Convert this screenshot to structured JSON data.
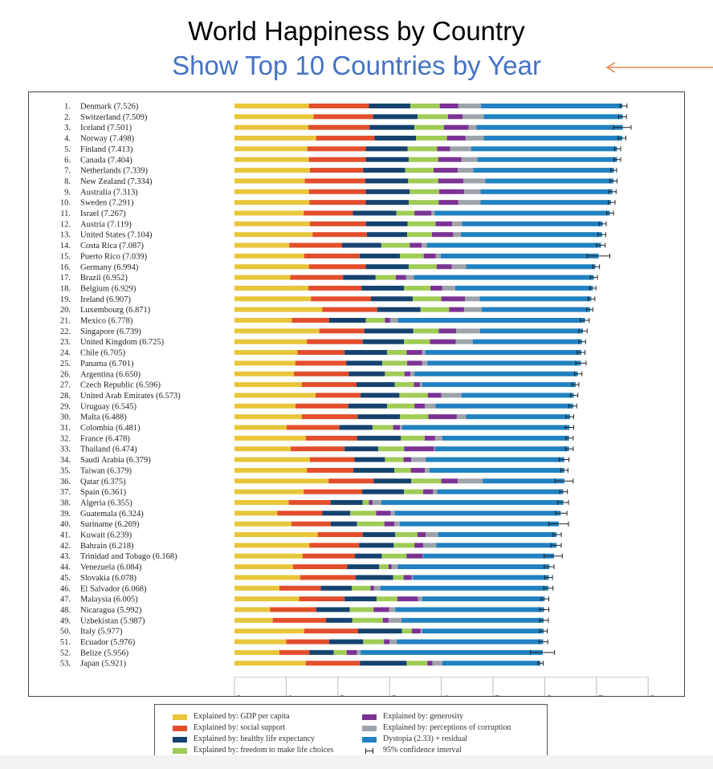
{
  "title": "World Happiness by Country",
  "subtitle": "Show Top 10 Countries by Year",
  "colors": {
    "gdp": "#e8c53a",
    "social": "#e24e2c",
    "health": "#16426f",
    "freedom": "#9fcc55",
    "generosity": "#7b3294",
    "corruption": "#9ea3ab",
    "dystopia": "#2181c1",
    "arrow": "#e8875a",
    "subtitle": "#4472c4"
  },
  "legend": {
    "gdp": "Explained by: GDP per capita",
    "social": "Explained by: social support",
    "health": "Explained by: healthy life expectancy",
    "freedom": "Explained by: freedom to make life choices",
    "generosity": "Explained by: generosity",
    "corruption": "Explained by: perceptions of corruption",
    "dystopia": "Dystopia (2.33) + residual",
    "ci": "95% confidence interval"
  },
  "chart_data": {
    "type": "bar",
    "orientation": "horizontal",
    "stacked": true,
    "title": "World Happiness by Country",
    "subtitle": "Show Top 10 Countries by Year",
    "xlim": [
      0,
      8
    ],
    "xticks": [
      "0",
      "1",
      "2",
      "3",
      "4",
      "5",
      "6",
      "7",
      "8"
    ],
    "grid": false,
    "legend_position": "bottom",
    "series_names": [
      "Explained by: GDP per capita",
      "Explained by: social support",
      "Explained by: healthy life expectancy",
      "Explained by: freedom to make life choices",
      "Explained by: generosity",
      "Explained by: perceptions of corruption",
      "Dystopia (2.33) + residual"
    ],
    "rows": [
      {
        "rank": "1.",
        "label": "Denmark (7.526)",
        "score": 7.526,
        "parts": [
          1.44,
          1.16,
          0.8,
          0.57,
          0.36,
          0.44,
          2.73
        ],
        "ci": [
          7.46,
          7.59
        ]
      },
      {
        "rank": "2.",
        "label": "Switzerland (7.509)",
        "score": 7.509,
        "parts": [
          1.53,
          1.15,
          0.86,
          0.59,
          0.28,
          0.41,
          2.69
        ],
        "ci": [
          7.43,
          7.58
        ]
      },
      {
        "rank": "3.",
        "label": "Iceland (7.501)",
        "score": 7.501,
        "parts": [
          1.43,
          1.18,
          0.87,
          0.57,
          0.48,
          0.15,
          2.83
        ],
        "ci": [
          7.33,
          7.67
        ]
      },
      {
        "rank": "4.",
        "label": "Norway (7.498)",
        "score": 7.498,
        "parts": [
          1.58,
          1.13,
          0.8,
          0.6,
          0.36,
          0.35,
          2.68
        ],
        "ci": [
          7.42,
          7.57
        ]
      },
      {
        "rank": "5.",
        "label": "Finland (7.413)",
        "score": 7.413,
        "parts": [
          1.41,
          1.13,
          0.81,
          0.57,
          0.25,
          0.41,
          2.82
        ],
        "ci": [
          7.35,
          7.47
        ]
      },
      {
        "rank": "6.",
        "label": "Canada (7.404)",
        "score": 7.404,
        "parts": [
          1.44,
          1.1,
          0.83,
          0.57,
          0.45,
          0.31,
          2.7
        ],
        "ci": [
          7.34,
          7.47
        ]
      },
      {
        "rank": "7.",
        "label": "Netherlands (7.339)",
        "score": 7.339,
        "parts": [
          1.46,
          1.03,
          0.81,
          0.55,
          0.47,
          0.3,
          2.72
        ],
        "ci": [
          7.28,
          7.39
        ]
      },
      {
        "rank": "8.",
        "label": "New Zealand (7.334)",
        "score": 7.334,
        "parts": [
          1.36,
          1.17,
          0.83,
          0.58,
          0.49,
          0.42,
          2.48
        ],
        "ci": [
          7.26,
          7.4
        ]
      },
      {
        "rank": "9.",
        "label": "Australia (7.313)",
        "score": 7.313,
        "parts": [
          1.44,
          1.1,
          0.85,
          0.57,
          0.48,
          0.32,
          2.55
        ],
        "ci": [
          7.24,
          7.38
        ]
      },
      {
        "rank": "10.",
        "label": "Sweden (7.291)",
        "score": 7.291,
        "parts": [
          1.45,
          1.09,
          0.83,
          0.58,
          0.38,
          0.43,
          2.52
        ],
        "ci": [
          7.23,
          7.36
        ]
      },
      {
        "rank": "11.",
        "label": "Israel (7.267)",
        "score": 7.267,
        "parts": [
          1.34,
          0.95,
          0.84,
          0.35,
          0.33,
          0.06,
          3.39
        ],
        "ci": [
          7.2,
          7.33
        ]
      },
      {
        "rank": "12.",
        "label": "Austria (7.119)",
        "score": 7.119,
        "parts": [
          1.46,
          1.08,
          0.81,
          0.54,
          0.32,
          0.19,
          2.72
        ],
        "ci": [
          7.05,
          7.19
        ]
      },
      {
        "rank": "13.",
        "label": "United States (7.104)",
        "score": 7.104,
        "parts": [
          1.51,
          1.05,
          0.78,
          0.48,
          0.41,
          0.15,
          2.73
        ],
        "ci": [
          7.03,
          7.18
        ]
      },
      {
        "rank": "14.",
        "label": "Costa Rica (7.087)",
        "score": 7.087,
        "parts": [
          1.06,
          1.02,
          0.76,
          0.55,
          0.23,
          0.1,
          3.37
        ],
        "ci": [
          7.0,
          7.17
        ]
      },
      {
        "rank": "15.",
        "label": "Puerto Rico (7.039)",
        "score": 7.039,
        "parts": [
          1.35,
          1.07,
          0.78,
          0.46,
          0.23,
          0.1,
          3.05
        ],
        "ci": [
          6.82,
          7.26
        ]
      },
      {
        "rank": "16.",
        "label": "Germany (6.994)",
        "score": 6.994,
        "parts": [
          1.44,
          1.1,
          0.83,
          0.54,
          0.29,
          0.28,
          2.5
        ],
        "ci": [
          6.93,
          7.06
        ]
      },
      {
        "rank": "17.",
        "label": "Brazil (6.952)",
        "score": 6.952,
        "parts": [
          1.08,
          1.02,
          0.63,
          0.39,
          0.2,
          0.15,
          3.48
        ],
        "ci": [
          6.88,
          7.02
        ]
      },
      {
        "rank": "18.",
        "label": "Belgium (6.929)",
        "score": 6.929,
        "parts": [
          1.43,
          1.03,
          0.82,
          0.51,
          0.23,
          0.25,
          2.66
        ],
        "ci": [
          6.87,
          6.99
        ]
      },
      {
        "rank": "19.",
        "label": "Ireland (6.907)",
        "score": 6.907,
        "parts": [
          1.48,
          1.16,
          0.81,
          0.55,
          0.46,
          0.28,
          2.16
        ],
        "ci": [
          6.84,
          6.97
        ]
      },
      {
        "rank": "20.",
        "label": "Luxembourg (6.871)",
        "score": 6.871,
        "parts": [
          1.7,
          1.06,
          0.84,
          0.55,
          0.29,
          0.34,
          2.1
        ],
        "ci": [
          6.81,
          6.93
        ]
      },
      {
        "rank": "21.",
        "label": "Mexico (6.778)",
        "score": 6.778,
        "parts": [
          1.11,
          0.72,
          0.71,
          0.37,
          0.1,
          0.15,
          3.62
        ],
        "ci": [
          6.69,
          6.86
        ]
      },
      {
        "rank": "22.",
        "label": "Singapore (6.739)",
        "score": 6.739,
        "parts": [
          1.64,
          0.87,
          0.95,
          0.49,
          0.34,
          0.46,
          1.99
        ],
        "ci": [
          6.66,
          6.82
        ]
      },
      {
        "rank": "23.",
        "label": "United Kingdom (6.725)",
        "score": 6.725,
        "parts": [
          1.4,
          1.08,
          0.8,
          0.5,
          0.5,
          0.33,
          2.11
        ],
        "ci": [
          6.66,
          6.79
        ]
      },
      {
        "rank": "24.",
        "label": "Chile (6.705)",
        "score": 6.705,
        "parts": [
          1.22,
          0.91,
          0.82,
          0.38,
          0.3,
          0.06,
          3.02
        ],
        "ci": [
          6.63,
          6.78
        ]
      },
      {
        "rank": "25.",
        "label": "Panama (6.701)",
        "score": 6.701,
        "parts": [
          1.18,
          0.98,
          0.7,
          0.48,
          0.29,
          0.1,
          2.97
        ],
        "ci": [
          6.6,
          6.8
        ]
      },
      {
        "rank": "26.",
        "label": "Argentina (6.650)",
        "score": 6.65,
        "parts": [
          1.15,
          1.06,
          0.7,
          0.38,
          0.11,
          0.08,
          3.16
        ],
        "ci": [
          6.58,
          6.72
        ]
      },
      {
        "rank": "27.",
        "label": "Czech Republic (6.596)",
        "score": 6.596,
        "parts": [
          1.3,
          1.06,
          0.74,
          0.37,
          0.12,
          0.04,
          2.97
        ],
        "ci": [
          6.53,
          6.66
        ]
      },
      {
        "rank": "28.",
        "label": "United Arab Emirates (6.573)",
        "score": 6.573,
        "parts": [
          1.57,
          0.87,
          0.75,
          0.55,
          0.26,
          0.39,
          2.17
        ],
        "ci": [
          6.5,
          6.64
        ]
      },
      {
        "rank": "29.",
        "label": "Uruguay (6.545)",
        "score": 6.545,
        "parts": [
          1.18,
          1.02,
          0.75,
          0.53,
          0.2,
          0.21,
          2.66
        ],
        "ci": [
          6.47,
          6.62
        ]
      },
      {
        "rank": "30.",
        "label": "Malta (6.488)",
        "score": 6.488,
        "parts": [
          1.3,
          1.08,
          0.82,
          0.55,
          0.55,
          0.18,
          2.01
        ],
        "ci": [
          6.41,
          6.56
        ]
      },
      {
        "rank": "31.",
        "label": "Colombia (6.481)",
        "score": 6.481,
        "parts": [
          1.01,
          1.02,
          0.64,
          0.4,
          0.13,
          0.04,
          3.24
        ],
        "ci": [
          6.4,
          6.56
        ]
      },
      {
        "rank": "32.",
        "label": "France (6.478)",
        "score": 6.478,
        "parts": [
          1.38,
          0.99,
          0.85,
          0.46,
          0.2,
          0.14,
          2.45
        ],
        "ci": [
          6.41,
          6.55
        ]
      },
      {
        "rank": "33.",
        "label": "Thailand (6.474)",
        "score": 6.474,
        "parts": [
          1.09,
          1.04,
          0.65,
          0.5,
          0.58,
          0.02,
          2.59
        ],
        "ci": [
          6.4,
          6.55
        ]
      },
      {
        "rank": "34.",
        "label": "Saudi Arabia (6.379)",
        "score": 6.379,
        "parts": [
          1.46,
          0.86,
          0.59,
          0.36,
          0.15,
          0.28,
          2.68
        ],
        "ci": [
          6.28,
          6.47
        ]
      },
      {
        "rank": "35.",
        "label": "Taiwan (6.379)",
        "score": 6.379,
        "parts": [
          1.4,
          0.9,
          0.79,
          0.32,
          0.27,
          0.09,
          2.61
        ],
        "ci": [
          6.31,
          6.45
        ]
      },
      {
        "rank": "36.",
        "label": "Qatar (6.375)",
        "score": 6.375,
        "parts": [
          1.82,
          0.87,
          0.73,
          0.58,
          0.32,
          0.48,
          1.58
        ],
        "ci": [
          6.2,
          6.55
        ]
      },
      {
        "rank": "37.",
        "label": "Spain (6.361)",
        "score": 6.361,
        "parts": [
          1.34,
          1.13,
          0.81,
          0.37,
          0.19,
          0.08,
          2.44
        ],
        "ci": [
          6.29,
          6.44
        ]
      },
      {
        "rank": "38.",
        "label": "Algeria (6.355)",
        "score": 6.355,
        "parts": [
          1.05,
          0.81,
          0.62,
          0.12,
          0.07,
          0.17,
          3.52
        ],
        "ci": [
          6.25,
          6.46
        ]
      },
      {
        "rank": "39.",
        "label": "Guatemala (6.324)",
        "score": 6.324,
        "parts": [
          0.83,
          0.87,
          0.54,
          0.5,
          0.28,
          0.08,
          3.21
        ],
        "ci": [
          6.21,
          6.43
        ]
      },
      {
        "rank": "40.",
        "label": "Suriname (6.269)",
        "score": 6.269,
        "parts": [
          1.1,
          0.76,
          0.51,
          0.53,
          0.19,
          0.11,
          3.07
        ],
        "ci": [
          6.08,
          6.46
        ]
      },
      {
        "rank": "41.",
        "label": "Kuwait (6.239)",
        "score": 6.239,
        "parts": [
          1.61,
          0.87,
          0.63,
          0.43,
          0.16,
          0.24,
          2.29
        ],
        "ci": [
          6.16,
          6.32
        ]
      },
      {
        "rank": "42.",
        "label": "Bahrain (6.218)",
        "score": 6.218,
        "parts": [
          1.45,
          0.96,
          0.67,
          0.4,
          0.17,
          0.25,
          2.33
        ],
        "ci": [
          6.12,
          6.32
        ]
      },
      {
        "rank": "43.",
        "label": "Trinidad and Tobago (6.168)",
        "score": 6.168,
        "parts": [
          1.32,
          1.01,
          0.52,
          0.48,
          0.31,
          0.01,
          2.53
        ],
        "ci": [
          5.99,
          6.34
        ]
      },
      {
        "rank": "44.",
        "label": "Venezuela (6.084)",
        "score": 6.084,
        "parts": [
          1.13,
          1.05,
          0.62,
          0.18,
          0.06,
          0.12,
          2.93
        ],
        "ci": [
          5.99,
          6.18
        ]
      },
      {
        "rank": "45.",
        "label": "Slovakia (6.078)",
        "score": 6.078,
        "parts": [
          1.27,
          1.07,
          0.73,
          0.2,
          0.16,
          0.02,
          2.63
        ],
        "ci": [
          6.0,
          6.15
        ]
      },
      {
        "rank": "46.",
        "label": "El Salvador (6.068)",
        "score": 6.068,
        "parts": [
          0.87,
          0.8,
          0.6,
          0.36,
          0.07,
          0.12,
          3.25
        ],
        "ci": [
          5.98,
          6.16
        ]
      },
      {
        "rank": "47.",
        "label": "Malaysia (6.005)",
        "score": 6.005,
        "parts": [
          1.25,
          0.88,
          0.62,
          0.4,
          0.4,
          0.08,
          2.37
        ],
        "ci": [
          5.93,
          6.08
        ]
      },
      {
        "rank": "48.",
        "label": "Nicaragua (5.992)",
        "score": 5.992,
        "parts": [
          0.69,
          0.89,
          0.65,
          0.46,
          0.3,
          0.12,
          2.88
        ],
        "ci": [
          5.9,
          6.08
        ]
      },
      {
        "rank": "49.",
        "label": "Uzbekistan (5.987)",
        "score": 5.987,
        "parts": [
          0.74,
          1.03,
          0.51,
          0.59,
          0.11,
          0.25,
          2.75
        ],
        "ci": [
          5.9,
          6.07
        ]
      },
      {
        "rank": "50.",
        "label": "Italy (5.977)",
        "score": 5.977,
        "parts": [
          1.35,
          1.04,
          0.85,
          0.19,
          0.17,
          0.03,
          2.35
        ],
        "ci": [
          5.9,
          6.05
        ]
      },
      {
        "rank": "51.",
        "label": "Ecuador (5.976)",
        "score": 5.976,
        "parts": [
          1.0,
          0.83,
          0.66,
          0.4,
          0.11,
          0.14,
          2.83
        ],
        "ci": [
          5.89,
          6.06
        ]
      },
      {
        "rank": "52.",
        "label": "Belize (5.956)",
        "score": 5.956,
        "parts": [
          0.87,
          0.58,
          0.47,
          0.25,
          0.2,
          0.07,
          3.52
        ],
        "ci": [
          5.72,
          6.19
        ]
      },
      {
        "rank": "53.",
        "label": "Japan (5.921)",
        "score": 5.921,
        "parts": [
          1.38,
          1.05,
          0.9,
          0.4,
          0.1,
          0.19,
          1.9
        ],
        "ci": [
          5.87,
          5.97
        ]
      }
    ]
  }
}
